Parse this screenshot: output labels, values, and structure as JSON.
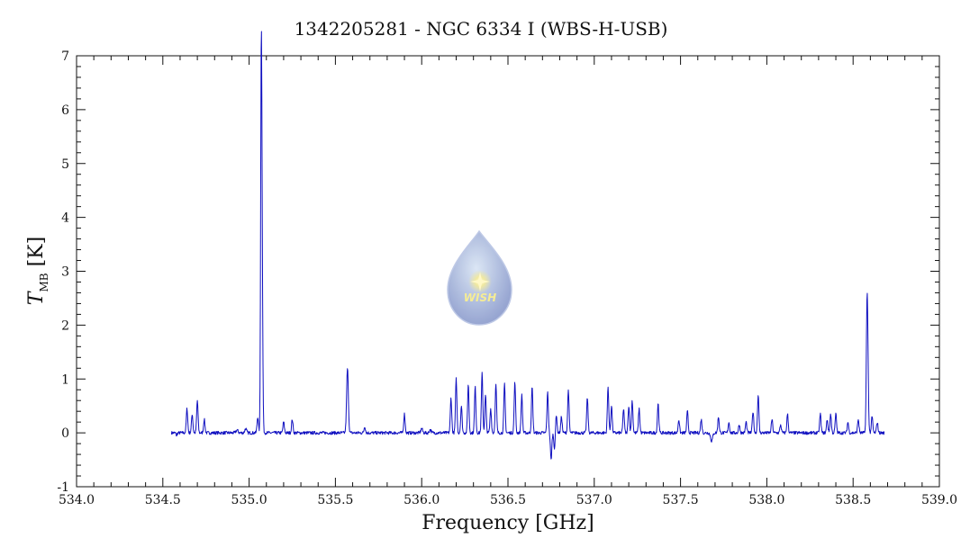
{
  "chart_data": {
    "type": "line",
    "title": "1342205281 - NGC 6334 I (WBS-H-USB)",
    "xlabel": "Frequency [GHz]",
    "ylabel": {
      "symbol": "T",
      "subscript": "MB",
      "unit": "[K]"
    },
    "xlim": [
      534.0,
      539.0
    ],
    "ylim": [
      -1,
      7
    ],
    "xticks": [
      "534.0",
      "534.5",
      "535.0",
      "535.5",
      "536.0",
      "536.5",
      "537.0",
      "537.5",
      "538.0",
      "538.5",
      "539.0"
    ],
    "yticks": [
      "-1",
      "0",
      "1",
      "2",
      "3",
      "4",
      "5",
      "6",
      "7"
    ],
    "grid": false,
    "logo_text": "WISH",
    "series": [
      {
        "color": "#1010c0",
        "x_range": [
          534.55,
          538.68
        ],
        "baseline": 0.0,
        "lines": [
          [
            534.58,
            -0.05,
            0.003
          ],
          [
            534.64,
            0.45,
            0.004
          ],
          [
            534.67,
            0.35,
            0.004
          ],
          [
            534.7,
            0.6,
            0.004
          ],
          [
            534.74,
            0.25,
            0.004
          ],
          [
            534.93,
            0.05,
            0.006
          ],
          [
            534.98,
            0.08,
            0.005
          ],
          [
            535.05,
            0.3,
            0.004
          ],
          [
            535.07,
            6.0,
            0.0035
          ],
          [
            535.075,
            3.0,
            0.004
          ],
          [
            535.2,
            0.2,
            0.004
          ],
          [
            535.25,
            0.25,
            0.004
          ],
          [
            535.57,
            1.2,
            0.005
          ],
          [
            535.67,
            0.12,
            0.004
          ],
          [
            535.9,
            0.35,
            0.004
          ],
          [
            536.0,
            0.08,
            0.005
          ],
          [
            536.05,
            0.06,
            0.005
          ],
          [
            536.17,
            0.65,
            0.004
          ],
          [
            536.2,
            1.0,
            0.004
          ],
          [
            536.23,
            0.5,
            0.004
          ],
          [
            536.27,
            0.9,
            0.004
          ],
          [
            536.31,
            0.85,
            0.004
          ],
          [
            536.35,
            1.1,
            0.004
          ],
          [
            536.37,
            0.7,
            0.004
          ],
          [
            536.4,
            0.45,
            0.004
          ],
          [
            536.43,
            0.9,
            0.004
          ],
          [
            536.48,
            0.9,
            0.004
          ],
          [
            536.54,
            0.95,
            0.004
          ],
          [
            536.58,
            0.7,
            0.004
          ],
          [
            536.64,
            0.85,
            0.004
          ],
          [
            536.73,
            0.75,
            0.004
          ],
          [
            536.75,
            -0.5,
            0.004
          ],
          [
            536.77,
            -0.3,
            0.004
          ],
          [
            536.78,
            0.35,
            0.004
          ],
          [
            536.81,
            0.3,
            0.004
          ],
          [
            536.85,
            0.8,
            0.004
          ],
          [
            536.96,
            0.65,
            0.004
          ],
          [
            537.08,
            0.85,
            0.004
          ],
          [
            537.1,
            0.5,
            0.004
          ],
          [
            537.17,
            0.45,
            0.004
          ],
          [
            537.2,
            0.5,
            0.004
          ],
          [
            537.22,
            0.6,
            0.004
          ],
          [
            537.26,
            0.45,
            0.004
          ],
          [
            537.37,
            0.55,
            0.004
          ],
          [
            537.49,
            0.25,
            0.004
          ],
          [
            537.54,
            0.4,
            0.004
          ],
          [
            537.62,
            0.25,
            0.004
          ],
          [
            537.68,
            -0.15,
            0.006
          ],
          [
            537.72,
            0.3,
            0.004
          ],
          [
            537.78,
            0.2,
            0.004
          ],
          [
            537.84,
            0.15,
            0.004
          ],
          [
            537.88,
            0.2,
            0.004
          ],
          [
            537.92,
            0.4,
            0.004
          ],
          [
            537.95,
            0.7,
            0.004
          ],
          [
            538.03,
            0.25,
            0.004
          ],
          [
            538.08,
            0.15,
            0.004
          ],
          [
            538.12,
            0.35,
            0.004
          ],
          [
            538.31,
            0.35,
            0.004
          ],
          [
            538.35,
            0.25,
            0.004
          ],
          [
            538.37,
            0.35,
            0.004
          ],
          [
            538.4,
            0.35,
            0.004
          ],
          [
            538.47,
            0.2,
            0.004
          ],
          [
            538.53,
            0.25,
            0.004
          ],
          [
            538.58,
            1.9,
            0.004
          ],
          [
            538.585,
            1.2,
            0.004
          ],
          [
            538.61,
            0.3,
            0.004
          ],
          [
            538.64,
            0.2,
            0.004
          ]
        ]
      }
    ]
  }
}
